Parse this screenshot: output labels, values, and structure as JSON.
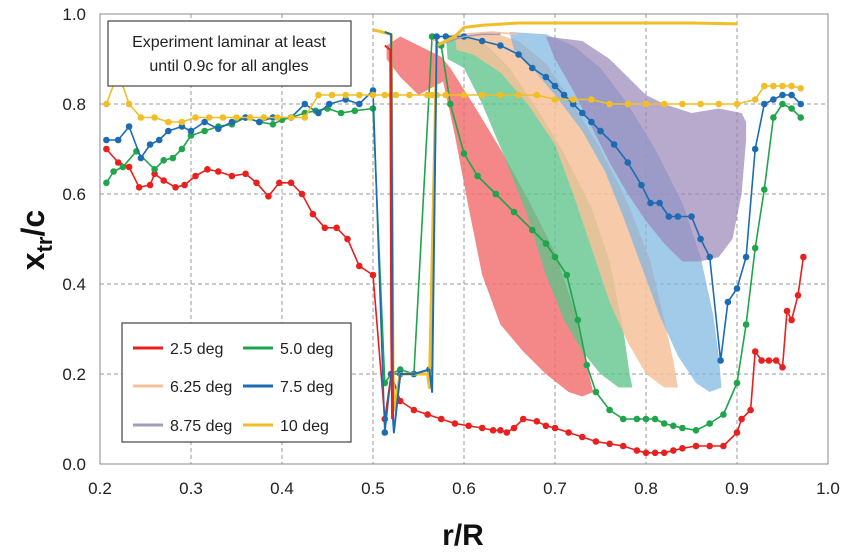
{
  "chart_data": {
    "type": "line",
    "xlabel": "r/R",
    "ylabel_main": "x",
    "ylabel_sub": "tr",
    "ylabel_tail": "/c",
    "xlim": [
      0.2,
      1.0
    ],
    "ylim": [
      0.0,
      1.0
    ],
    "x_ticks": [
      "0.2",
      "0.3",
      "0.4",
      "0.5",
      "0.6",
      "0.7",
      "0.8",
      "0.9",
      "1.0"
    ],
    "y_ticks": [
      "0.0",
      "0.2",
      "0.4",
      "0.6",
      "0.8",
      "1.0"
    ],
    "grid": true,
    "annotation": {
      "line1": "Experiment laminar at least",
      "line2": "until 0.9c for all angles"
    },
    "legend": {
      "placement": "bottom-left",
      "entries": [
        {
          "label": "2.5 deg",
          "color": "#e8201e"
        },
        {
          "label": "5.0 deg",
          "color": "#1fa54b"
        },
        {
          "label": "6.25 deg",
          "color": "#f6c19a"
        },
        {
          "label": "7.5 deg",
          "color": "#1c6cb4"
        },
        {
          "label": "8.75 deg",
          "color": "#a59abc"
        },
        {
          "label": "10 deg",
          "color": "#f2be27"
        }
      ]
    },
    "bands": [
      {
        "name": "2.5 deg",
        "color": "#f26d6d",
        "opacity": 0.82,
        "polygon": [
          [
            0.515,
            0.93
          ],
          [
            0.53,
            0.95
          ],
          [
            0.575,
            0.905
          ],
          [
            0.585,
            0.88
          ],
          [
            0.61,
            0.8
          ],
          [
            0.64,
            0.7
          ],
          [
            0.67,
            0.59
          ],
          [
            0.7,
            0.47
          ],
          [
            0.725,
            0.32
          ],
          [
            0.735,
            0.22
          ],
          [
            0.742,
            0.16
          ],
          [
            0.73,
            0.15
          ],
          [
            0.715,
            0.16
          ],
          [
            0.69,
            0.2
          ],
          [
            0.665,
            0.25
          ],
          [
            0.64,
            0.31
          ],
          [
            0.62,
            0.42
          ],
          [
            0.605,
            0.57
          ],
          [
            0.59,
            0.73
          ],
          [
            0.577,
            0.85
          ],
          [
            0.55,
            0.82
          ],
          [
            0.53,
            0.86
          ],
          [
            0.515,
            0.9
          ]
        ]
      },
      {
        "name": "5.0 deg",
        "color": "#5fc48a",
        "opacity": 0.78,
        "polygon": [
          [
            0.58,
            0.95
          ],
          [
            0.6,
            0.955
          ],
          [
            0.625,
            0.93
          ],
          [
            0.65,
            0.88
          ],
          [
            0.68,
            0.79
          ],
          [
            0.71,
            0.69
          ],
          [
            0.74,
            0.57
          ],
          [
            0.76,
            0.45
          ],
          [
            0.775,
            0.3
          ],
          [
            0.782,
            0.2
          ],
          [
            0.785,
            0.17
          ],
          [
            0.77,
            0.17
          ],
          [
            0.75,
            0.2
          ],
          [
            0.73,
            0.25
          ],
          [
            0.71,
            0.32
          ],
          [
            0.69,
            0.42
          ],
          [
            0.67,
            0.55
          ],
          [
            0.645,
            0.68
          ],
          [
            0.62,
            0.8
          ],
          [
            0.6,
            0.88
          ],
          [
            0.582,
            0.9
          ]
        ]
      },
      {
        "name": "6.25 deg",
        "color": "#f6c19a",
        "opacity": 0.85,
        "polygon": [
          [
            0.59,
            0.95
          ],
          [
            0.63,
            0.96
          ],
          [
            0.66,
            0.94
          ],
          [
            0.69,
            0.89
          ],
          [
            0.72,
            0.8
          ],
          [
            0.75,
            0.7
          ],
          [
            0.78,
            0.58
          ],
          [
            0.805,
            0.45
          ],
          [
            0.82,
            0.32
          ],
          [
            0.83,
            0.23
          ],
          [
            0.835,
            0.17
          ],
          [
            0.82,
            0.17
          ],
          [
            0.8,
            0.2
          ],
          [
            0.78,
            0.27
          ],
          [
            0.76,
            0.36
          ],
          [
            0.74,
            0.48
          ],
          [
            0.72,
            0.6
          ],
          [
            0.7,
            0.71
          ],
          [
            0.67,
            0.8
          ],
          [
            0.64,
            0.87
          ],
          [
            0.61,
            0.91
          ],
          [
            0.592,
            0.92
          ]
        ]
      },
      {
        "name": "7.5 deg",
        "color": "#7eb6e0",
        "opacity": 0.72,
        "polygon": [
          [
            0.65,
            0.96
          ],
          [
            0.69,
            0.955
          ],
          [
            0.72,
            0.93
          ],
          [
            0.75,
            0.88
          ],
          [
            0.78,
            0.8
          ],
          [
            0.81,
            0.7
          ],
          [
            0.84,
            0.58
          ],
          [
            0.86,
            0.46
          ],
          [
            0.874,
            0.33
          ],
          [
            0.88,
            0.24
          ],
          [
            0.883,
            0.17
          ],
          [
            0.87,
            0.16
          ],
          [
            0.855,
            0.18
          ],
          [
            0.835,
            0.24
          ],
          [
            0.815,
            0.33
          ],
          [
            0.795,
            0.44
          ],
          [
            0.775,
            0.55
          ],
          [
            0.755,
            0.65
          ],
          [
            0.73,
            0.74
          ],
          [
            0.7,
            0.82
          ],
          [
            0.675,
            0.88
          ],
          [
            0.655,
            0.92
          ]
        ]
      },
      {
        "name": "8.75 deg",
        "color": "#9a86b8",
        "opacity": 0.7,
        "polygon": [
          [
            0.69,
            0.95
          ],
          [
            0.73,
            0.94
          ],
          [
            0.76,
            0.9
          ],
          [
            0.78,
            0.86
          ],
          [
            0.8,
            0.82
          ],
          [
            0.82,
            0.8
          ],
          [
            0.85,
            0.78
          ],
          [
            0.88,
            0.79
          ],
          [
            0.905,
            0.78
          ],
          [
            0.91,
            0.76
          ],
          [
            0.91,
            0.72
          ],
          [
            0.905,
            0.6
          ],
          [
            0.895,
            0.5
          ],
          [
            0.88,
            0.46
          ],
          [
            0.86,
            0.45
          ],
          [
            0.84,
            0.45
          ],
          [
            0.82,
            0.49
          ],
          [
            0.8,
            0.54
          ],
          [
            0.78,
            0.6
          ],
          [
            0.76,
            0.67
          ],
          [
            0.74,
            0.75
          ],
          [
            0.72,
            0.83
          ],
          [
            0.7,
            0.9
          ]
        ]
      }
    ],
    "series": [
      {
        "name": "2.5 deg",
        "color": "#e8201e",
        "markers": true,
        "x": [
          0.207,
          0.22,
          0.232,
          0.243,
          0.255,
          0.26,
          0.27,
          0.283,
          0.293,
          0.305,
          0.318,
          0.33,
          0.345,
          0.36,
          0.372,
          0.385,
          0.397,
          0.41,
          0.422,
          0.434,
          0.447,
          0.46,
          0.472,
          0.485,
          0.5,
          0.513,
          0.52,
          0.53,
          0.545,
          0.56,
          0.575,
          0.59,
          0.605,
          0.62,
          0.632,
          0.64,
          0.647,
          0.655,
          0.665,
          0.68,
          0.69,
          0.7,
          0.715,
          0.73,
          0.745,
          0.76,
          0.775,
          0.79,
          0.8,
          0.81,
          0.82,
          0.83,
          0.84,
          0.855,
          0.87,
          0.885,
          0.9,
          0.905,
          0.915,
          0.92,
          0.927,
          0.935,
          0.943,
          0.95,
          0.955,
          0.96,
          0.967,
          0.973
        ],
        "y": [
          0.7,
          0.67,
          0.66,
          0.615,
          0.62,
          0.645,
          0.63,
          0.615,
          0.62,
          0.64,
          0.655,
          0.65,
          0.64,
          0.645,
          0.625,
          0.595,
          0.625,
          0.625,
          0.6,
          0.555,
          0.525,
          0.525,
          0.5,
          0.44,
          0.42,
          0.1,
          0.2,
          0.14,
          0.12,
          0.11,
          0.1,
          0.09,
          0.085,
          0.08,
          0.075,
          0.075,
          0.07,
          0.08,
          0.1,
          0.095,
          0.085,
          0.08,
          0.07,
          0.06,
          0.05,
          0.045,
          0.04,
          0.03,
          0.025,
          0.025,
          0.025,
          0.03,
          0.035,
          0.04,
          0.04,
          0.04,
          0.07,
          0.1,
          0.12,
          0.25,
          0.23,
          0.23,
          0.23,
          0.215,
          0.34,
          0.32,
          0.375,
          0.46
        ]
      },
      {
        "name": "5.0 deg",
        "color": "#1fa54b",
        "markers": true,
        "x": [
          0.207,
          0.215,
          0.225,
          0.24,
          0.26,
          0.27,
          0.28,
          0.29,
          0.3,
          0.315,
          0.33,
          0.345,
          0.36,
          0.375,
          0.39,
          0.4,
          0.41,
          0.425,
          0.437,
          0.45,
          0.465,
          0.48,
          0.5,
          0.513,
          0.52,
          0.53,
          0.545,
          0.565,
          0.575,
          0.585,
          0.6,
          0.615,
          0.635,
          0.655,
          0.675,
          0.69,
          0.7,
          0.713,
          0.725,
          0.735,
          0.745,
          0.76,
          0.775,
          0.79,
          0.8,
          0.81,
          0.82,
          0.83,
          0.84,
          0.855,
          0.87,
          0.885,
          0.9,
          0.91,
          0.92,
          0.93,
          0.94,
          0.95,
          0.96,
          0.97
        ],
        "y": [
          0.625,
          0.65,
          0.66,
          0.695,
          0.655,
          0.675,
          0.68,
          0.7,
          0.73,
          0.74,
          0.75,
          0.755,
          0.77,
          0.76,
          0.755,
          0.765,
          0.77,
          0.78,
          0.785,
          0.79,
          0.78,
          0.785,
          0.79,
          0.18,
          0.2,
          0.21,
          0.2,
          0.95,
          0.93,
          0.8,
          0.69,
          0.64,
          0.6,
          0.56,
          0.52,
          0.49,
          0.46,
          0.42,
          0.32,
          0.22,
          0.16,
          0.12,
          0.1,
          0.1,
          0.1,
          0.1,
          0.09,
          0.085,
          0.08,
          0.075,
          0.09,
          0.11,
          0.18,
          0.31,
          0.48,
          0.61,
          0.77,
          0.8,
          0.79,
          0.77
        ]
      },
      {
        "name": "6.25 deg",
        "color": "#f6c19a",
        "markers": false,
        "x": [
          0.565,
          0.575,
          0.6,
          0.63,
          0.66
        ],
        "y": [
          0.94,
          0.95,
          0.955,
          0.96,
          0.955
        ]
      },
      {
        "name": "7.5 deg",
        "color": "#1c6cb4",
        "markers": true,
        "x": [
          0.207,
          0.22,
          0.232,
          0.245,
          0.255,
          0.265,
          0.275,
          0.29,
          0.3,
          0.315,
          0.33,
          0.345,
          0.36,
          0.375,
          0.39,
          0.41,
          0.425,
          0.44,
          0.452,
          0.47,
          0.485,
          0.5,
          0.513,
          0.52,
          0.53,
          0.545,
          0.562,
          0.57,
          0.58,
          0.6,
          0.62,
          0.64,
          0.66,
          0.675,
          0.69,
          0.7,
          0.71,
          0.72,
          0.73,
          0.74,
          0.75,
          0.765,
          0.78,
          0.795,
          0.805,
          0.815,
          0.825,
          0.835,
          0.85,
          0.86,
          0.87,
          0.882,
          0.89,
          0.9,
          0.91,
          0.92,
          0.93,
          0.94,
          0.95,
          0.96,
          0.97
        ],
        "y": [
          0.72,
          0.72,
          0.75,
          0.68,
          0.71,
          0.72,
          0.74,
          0.75,
          0.74,
          0.76,
          0.745,
          0.76,
          0.77,
          0.76,
          0.77,
          0.77,
          0.8,
          0.78,
          0.8,
          0.81,
          0.8,
          0.83,
          0.07,
          0.2,
          0.2,
          0.2,
          0.21,
          0.95,
          0.95,
          0.95,
          0.94,
          0.93,
          0.91,
          0.88,
          0.86,
          0.84,
          0.82,
          0.8,
          0.78,
          0.76,
          0.74,
          0.71,
          0.67,
          0.62,
          0.58,
          0.58,
          0.55,
          0.55,
          0.55,
          0.5,
          0.46,
          0.23,
          0.36,
          0.39,
          0.46,
          0.7,
          0.8,
          0.81,
          0.82,
          0.82,
          0.8
        ]
      },
      {
        "name": "8.75 deg",
        "color": "#a59abc",
        "markers": false,
        "x": [
          0.57,
          0.585,
          0.6,
          0.62,
          0.64
        ],
        "y": [
          0.93,
          0.94,
          0.95,
          0.955,
          0.955
        ]
      },
      {
        "name": "10 deg",
        "color": "#f2be27",
        "markers": true,
        "x": [
          0.207,
          0.22,
          0.232,
          0.245,
          0.26,
          0.275,
          0.29,
          0.305,
          0.32,
          0.335,
          0.35,
          0.365,
          0.38,
          0.395,
          0.41,
          0.425,
          0.44,
          0.455,
          0.47,
          0.485,
          0.5,
          0.513,
          0.52,
          0.525,
          0.54,
          0.56,
          0.565,
          0.57,
          0.58,
          0.6,
          0.62,
          0.64,
          0.66,
          0.68,
          0.7,
          0.72,
          0.74,
          0.76,
          0.78,
          0.8,
          0.82,
          0.84,
          0.86,
          0.88,
          0.9,
          0.92,
          0.93,
          0.94,
          0.95,
          0.96,
          0.97
        ],
        "y": [
          0.8,
          0.87,
          0.8,
          0.77,
          0.77,
          0.76,
          0.76,
          0.77,
          0.77,
          0.77,
          0.77,
          0.77,
          0.77,
          0.77,
          0.77,
          0.77,
          0.82,
          0.82,
          0.82,
          0.82,
          0.82,
          0.82,
          0.82,
          0.82,
          0.82,
          0.82,
          0.82,
          0.82,
          0.82,
          0.82,
          0.82,
          0.82,
          0.82,
          0.82,
          0.81,
          0.81,
          0.81,
          0.8,
          0.8,
          0.8,
          0.8,
          0.8,
          0.8,
          0.8,
          0.8,
          0.81,
          0.84,
          0.84,
          0.84,
          0.84,
          0.835
        ]
      },
      {
        "name": "10 deg",
        "color": "#f2be27",
        "markers": false,
        "width": 3,
        "x": [
          0.5,
          0.51,
          0.52,
          0.522,
          0.523,
          0.53,
          0.54,
          0.56,
          0.562,
          0.57,
          0.59,
          0.6,
          0.62,
          0.66,
          0.7,
          0.75,
          0.8,
          0.85,
          0.9
        ],
        "y": [
          0.965,
          0.96,
          0.955,
          0.2,
          0.12,
          0.2,
          0.2,
          0.2,
          0.17,
          0.93,
          0.95,
          0.97,
          0.975,
          0.98,
          0.98,
          0.98,
          0.98,
          0.98,
          0.978
        ]
      },
      {
        "name": "7.5 deg",
        "color": "#1c6cb4",
        "markers": false,
        "width": 2,
        "x": [
          0.513,
          0.52,
          0.522,
          0.523,
          0.53,
          0.545,
          0.562,
          0.565,
          0.57
        ],
        "y": [
          0.96,
          0.955,
          0.1,
          0.07,
          0.2,
          0.2,
          0.21,
          0.16,
          0.95
        ]
      },
      {
        "name": "2.5 deg",
        "color": "#e8201e",
        "markers": false,
        "width": 2,
        "x": [
          0.513,
          0.519,
          0.52,
          0.521
        ],
        "y": [
          0.93,
          0.92,
          0.3,
          0.1
        ]
      }
    ]
  }
}
